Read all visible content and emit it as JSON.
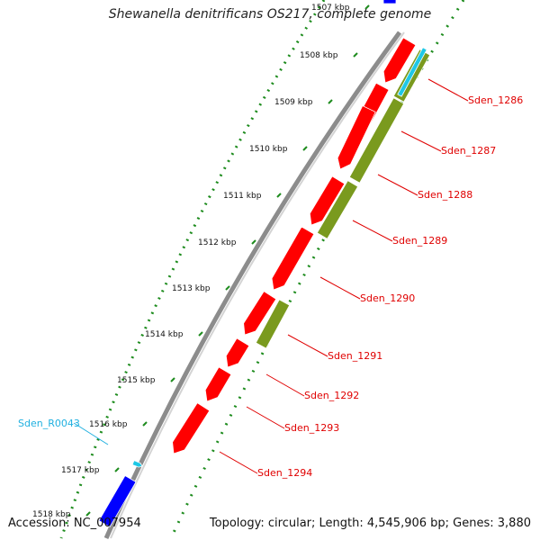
{
  "title": "Shewanella denitrificans OS217, complete genome",
  "accession": "Accession: NC_007954",
  "topology": "Topology: circular; Length: 4,545,906 bp; Genes: 3,880",
  "colors": {
    "backbone": "#8c8c8c",
    "tick_dots": "#1e8c1e",
    "gene_red": "#ff0000",
    "gene_olive": "#7a9a1e",
    "gene_cyan": "#1ec8e6",
    "gene_blue": "#0000ff",
    "label_red": "#e00000",
    "label_cyan": "#20b0e0"
  },
  "kbp_ticks": [
    "1507 kbp",
    "1508 kbp",
    "1509 kbp",
    "1510 kbp",
    "1511 kbp",
    "1512 kbp",
    "1513 kbp",
    "1514 kbp",
    "1515 kbp",
    "1516 kbp",
    "1517 kbp",
    "1518 kbp"
  ],
  "gene_labels": [
    {
      "text": "Sden_1286",
      "color": "red"
    },
    {
      "text": "Sden_1287",
      "color": "red"
    },
    {
      "text": "Sden_1288",
      "color": "red"
    },
    {
      "text": "Sden_1289",
      "color": "red"
    },
    {
      "text": "Sden_1290",
      "color": "red"
    },
    {
      "text": "Sden_1291",
      "color": "red"
    },
    {
      "text": "Sden_1292",
      "color": "red"
    },
    {
      "text": "Sden_1293",
      "color": "red"
    },
    {
      "text": "Sden_1294",
      "color": "red"
    },
    {
      "text": "Sden_R0043",
      "color": "cyan"
    }
  ]
}
